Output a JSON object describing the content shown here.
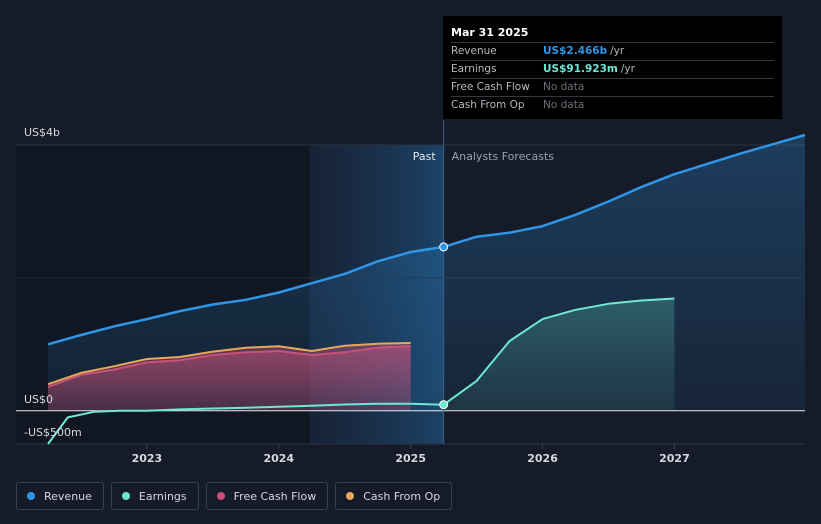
{
  "tooltip": {
    "date": "Mar 31 2025",
    "rows": [
      {
        "label": "Revenue",
        "value": "US$2.466b",
        "unit": "/yr",
        "color": "#2f95e6"
      },
      {
        "label": "Earnings",
        "value": "US$91.923m",
        "unit": "/yr",
        "color": "#6ee7d3"
      },
      {
        "label": "Free Cash Flow",
        "value": "No data",
        "unit": "",
        "color": ""
      },
      {
        "label": "Cash From Op",
        "value": "No data",
        "unit": "",
        "color": ""
      }
    ]
  },
  "legend": [
    {
      "label": "Revenue",
      "color": "#2f95e6"
    },
    {
      "label": "Earnings",
      "color": "#6ee7d3"
    },
    {
      "label": "Free Cash Flow",
      "color": "#c8527a"
    },
    {
      "label": "Cash From Op",
      "color": "#e8a857"
    }
  ],
  "chart_data": {
    "type": "line",
    "y_top_label": "US$4b",
    "y_zero_label": "US$0",
    "y_bottom_label": "-US$500m",
    "ylim": [
      -500,
      4000
    ],
    "xlim": [
      2022.25,
      2027.99
    ],
    "x_ticks": [
      2023,
      2024,
      2025,
      2026,
      2027
    ],
    "x_tick_labels": [
      "2023",
      "2024",
      "2025",
      "2026",
      "2027"
    ],
    "divider_x": 2025.25,
    "past_label": "Past",
    "forecast_label": "Analysts Forecasts",
    "series": [
      {
        "name": "Revenue",
        "color": "#2f95e6",
        "points": [
          [
            2022.25,
            1000
          ],
          [
            2022.5,
            1140
          ],
          [
            2022.75,
            1270
          ],
          [
            2023.0,
            1380
          ],
          [
            2023.25,
            1500
          ],
          [
            2023.5,
            1600
          ],
          [
            2023.75,
            1670
          ],
          [
            2024.0,
            1780
          ],
          [
            2024.25,
            1920
          ],
          [
            2024.5,
            2060
          ],
          [
            2024.75,
            2250
          ],
          [
            2025.0,
            2390
          ],
          [
            2025.25,
            2466
          ],
          [
            2025.5,
            2620
          ],
          [
            2025.75,
            2680
          ],
          [
            2026.0,
            2780
          ],
          [
            2026.25,
            2950
          ],
          [
            2026.5,
            3150
          ],
          [
            2026.75,
            3370
          ],
          [
            2027.0,
            3560
          ],
          [
            2027.5,
            3870
          ],
          [
            2027.99,
            4150
          ]
        ]
      },
      {
        "name": "Earnings",
        "color": "#6ee7d3",
        "points": [
          [
            2022.25,
            -500
          ],
          [
            2022.4,
            -100
          ],
          [
            2022.6,
            -15
          ],
          [
            2022.8,
            0
          ],
          [
            2023.0,
            0
          ],
          [
            2023.25,
            20
          ],
          [
            2023.5,
            35
          ],
          [
            2023.75,
            45
          ],
          [
            2024.0,
            60
          ],
          [
            2024.25,
            75
          ],
          [
            2024.5,
            95
          ],
          [
            2024.75,
            105
          ],
          [
            2025.0,
            105
          ],
          [
            2025.25,
            92
          ],
          [
            2025.5,
            450
          ],
          [
            2025.75,
            1050
          ],
          [
            2026.0,
            1380
          ],
          [
            2026.25,
            1520
          ],
          [
            2026.5,
            1610
          ],
          [
            2026.75,
            1660
          ],
          [
            2027.0,
            1690
          ]
        ]
      },
      {
        "name": "Free Cash Flow",
        "color": "#c8527a",
        "points": [
          [
            2022.25,
            360
          ],
          [
            2022.5,
            540
          ],
          [
            2022.75,
            620
          ],
          [
            2023.0,
            730
          ],
          [
            2023.25,
            760
          ],
          [
            2023.5,
            840
          ],
          [
            2023.75,
            880
          ],
          [
            2024.0,
            900
          ],
          [
            2024.25,
            840
          ],
          [
            2024.5,
            880
          ],
          [
            2024.75,
            950
          ],
          [
            2025.0,
            970
          ]
        ]
      },
      {
        "name": "Cash From Op",
        "color": "#e8a857",
        "points": [
          [
            2022.25,
            400
          ],
          [
            2022.5,
            570
          ],
          [
            2022.75,
            670
          ],
          [
            2023.0,
            780
          ],
          [
            2023.25,
            810
          ],
          [
            2023.5,
            890
          ],
          [
            2023.75,
            950
          ],
          [
            2024.0,
            970
          ],
          [
            2024.25,
            900
          ],
          [
            2024.5,
            980
          ],
          [
            2024.75,
            1010
          ],
          [
            2025.0,
            1020
          ]
        ]
      }
    ]
  }
}
